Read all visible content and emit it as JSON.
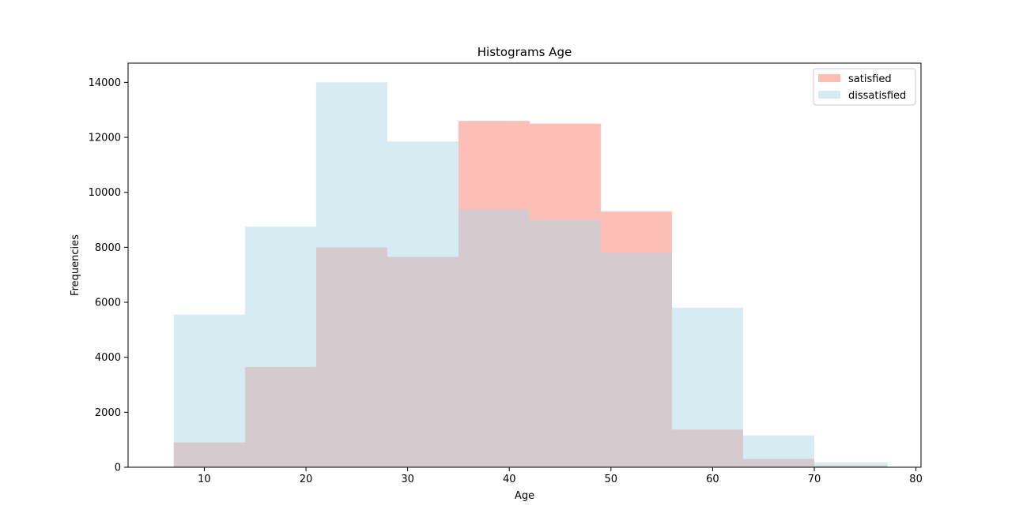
{
  "chart_data": {
    "type": "bar",
    "title": "Histograms Age",
    "xlabel": "Age",
    "ylabel": "Frequencies",
    "xlim": [
      2.5,
      80.5
    ],
    "ylim": [
      0,
      14700
    ],
    "x_ticks": [
      10,
      20,
      30,
      40,
      50,
      60,
      70,
      80
    ],
    "y_ticks": [
      0,
      2000,
      4000,
      6000,
      8000,
      10000,
      12000,
      14000
    ],
    "bin_edges": [
      7,
      14,
      21,
      28,
      35,
      42,
      49,
      56,
      63,
      70,
      77.2
    ],
    "grid": false,
    "legend_position": "top-right",
    "series": [
      {
        "name": "satisfied",
        "color": "#fa8072",
        "opacity": 0.5,
        "values": [
          900,
          3650,
          8000,
          7650,
          12600,
          12500,
          9300,
          1370,
          300,
          60
        ]
      },
      {
        "name": "dissatisfied",
        "color": "#add8e6",
        "opacity": 0.5,
        "values": [
          5550,
          8750,
          14000,
          11850,
          9380,
          9000,
          7800,
          5800,
          1160,
          170
        ]
      }
    ]
  }
}
